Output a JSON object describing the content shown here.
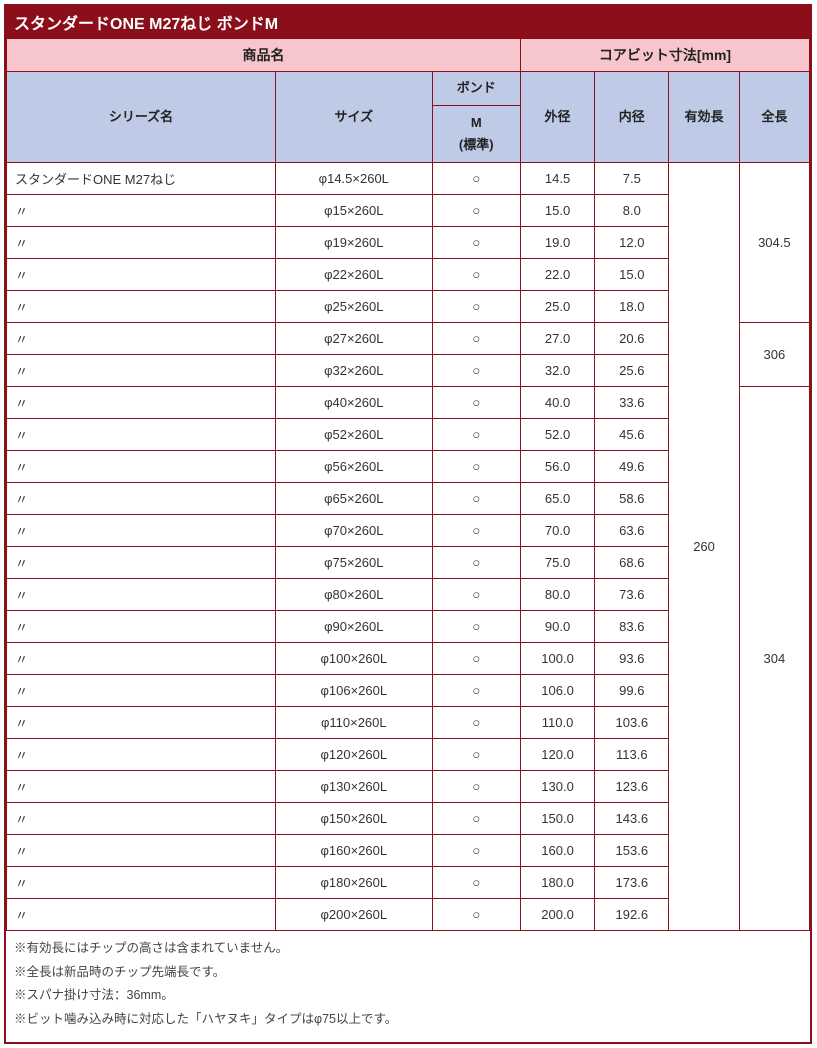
{
  "title": "スタンダードONE M27ねじ ボンドM",
  "colors": {
    "border": "#8a0f1a",
    "header_top_bg": "#f7c6cc",
    "header_sub_bg": "#bfcbe6",
    "title_bg": "#8a0f1a",
    "title_fg": "#ffffff"
  },
  "header": {
    "product_name": "商品名",
    "corebit_dim": "コアビット寸法[mm]",
    "series": "シリーズ名",
    "size": "サイズ",
    "bond_top": "ボンド",
    "bond_sub": "M\n(標準)",
    "outer": "外径",
    "inner": "内径",
    "eff": "有効長",
    "full": "全長"
  },
  "ditto": "〃",
  "circle": "○",
  "effective_length": "260",
  "full_lengths": [
    {
      "rows": 5,
      "value": "304.5"
    },
    {
      "rows": 2,
      "value": "306"
    },
    {
      "rows": 17,
      "value": "304"
    }
  ],
  "rows": [
    {
      "series": "スタンダードONE M27ねじ",
      "size": "φ14.5×260L",
      "bond": "○",
      "outer": "14.5",
      "inner": "7.5"
    },
    {
      "series": "〃",
      "size": "φ15×260L",
      "bond": "○",
      "outer": "15.0",
      "inner": "8.0"
    },
    {
      "series": "〃",
      "size": "φ19×260L",
      "bond": "○",
      "outer": "19.0",
      "inner": "12.0"
    },
    {
      "series": "〃",
      "size": "φ22×260L",
      "bond": "○",
      "outer": "22.0",
      "inner": "15.0"
    },
    {
      "series": "〃",
      "size": "φ25×260L",
      "bond": "○",
      "outer": "25.0",
      "inner": "18.0"
    },
    {
      "series": "〃",
      "size": "φ27×260L",
      "bond": "○",
      "outer": "27.0",
      "inner": "20.6"
    },
    {
      "series": "〃",
      "size": "φ32×260L",
      "bond": "○",
      "outer": "32.0",
      "inner": "25.6"
    },
    {
      "series": "〃",
      "size": "φ40×260L",
      "bond": "○",
      "outer": "40.0",
      "inner": "33.6"
    },
    {
      "series": "〃",
      "size": "φ52×260L",
      "bond": "○",
      "outer": "52.0",
      "inner": "45.6"
    },
    {
      "series": "〃",
      "size": "φ56×260L",
      "bond": "○",
      "outer": "56.0",
      "inner": "49.6"
    },
    {
      "series": "〃",
      "size": "φ65×260L",
      "bond": "○",
      "outer": "65.0",
      "inner": "58.6"
    },
    {
      "series": "〃",
      "size": "φ70×260L",
      "bond": "○",
      "outer": "70.0",
      "inner": "63.6"
    },
    {
      "series": "〃",
      "size": "φ75×260L",
      "bond": "○",
      "outer": "75.0",
      "inner": "68.6"
    },
    {
      "series": "〃",
      "size": "φ80×260L",
      "bond": "○",
      "outer": "80.0",
      "inner": "73.6"
    },
    {
      "series": "〃",
      "size": "φ90×260L",
      "bond": "○",
      "outer": "90.0",
      "inner": "83.6"
    },
    {
      "series": "〃",
      "size": "φ100×260L",
      "bond": "○",
      "outer": "100.0",
      "inner": "93.6"
    },
    {
      "series": "〃",
      "size": "φ106×260L",
      "bond": "○",
      "outer": "106.0",
      "inner": "99.6"
    },
    {
      "series": "〃",
      "size": "φ110×260L",
      "bond": "○",
      "outer": "110.0",
      "inner": "103.6"
    },
    {
      "series": "〃",
      "size": "φ120×260L",
      "bond": "○",
      "outer": "120.0",
      "inner": "113.6"
    },
    {
      "series": "〃",
      "size": "φ130×260L",
      "bond": "○",
      "outer": "130.0",
      "inner": "123.6"
    },
    {
      "series": "〃",
      "size": "φ150×260L",
      "bond": "○",
      "outer": "150.0",
      "inner": "143.6"
    },
    {
      "series": "〃",
      "size": "φ160×260L",
      "bond": "○",
      "outer": "160.0",
      "inner": "153.6"
    },
    {
      "series": "〃",
      "size": "φ180×260L",
      "bond": "○",
      "outer": "180.0",
      "inner": "173.6"
    },
    {
      "series": "〃",
      "size": "φ200×260L",
      "bond": "○",
      "outer": "200.0",
      "inner": "192.6"
    }
  ],
  "notes": [
    "※有効長にはチップの高さは含まれていません。",
    "※全長は新品時のチップ先端長です。",
    "※スパナ掛け寸法：36mm。",
    "※ビット噛み込み時に対応した「ハヤヌキ」タイプはφ75以上です。"
  ]
}
